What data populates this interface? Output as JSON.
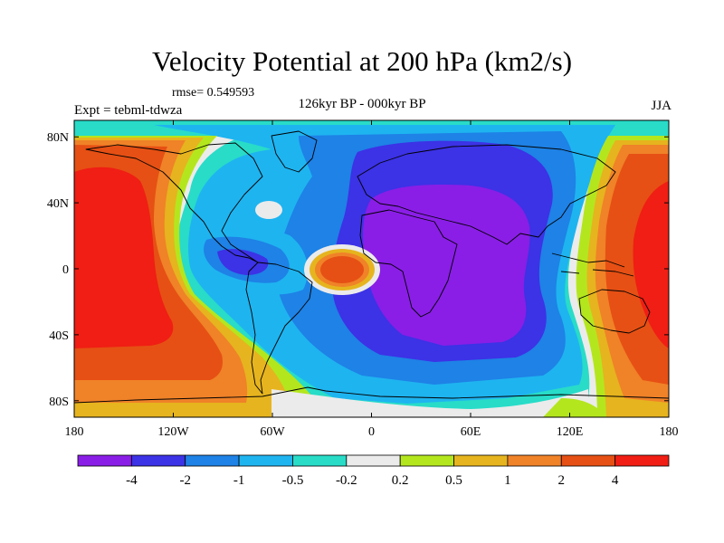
{
  "title": "Velocity Potential at 200 hPa (km2/s)",
  "rmse_text": "rmse= 0.549593",
  "left_label": "Expt = tebml-tdwza",
  "center_label": "126kyr BP - 000kyr BP",
  "right_label": "JJA",
  "colors": {
    "c0": "#8a1ee6",
    "c1": "#3c32e6",
    "c2": "#1e82e6",
    "c3": "#1eb4f0",
    "c4": "#28dcc8",
    "c5": "#ebebeb",
    "c6": "#b4e61e",
    "c7": "#e6b41e",
    "c8": "#f08228",
    "c9": "#e65014",
    "c10": "#f01e14"
  },
  "map_data": {
    "projection": "cylindrical-equidistant",
    "lon_range": [
      -180,
      180
    ],
    "lat_range": [
      -90,
      90
    ],
    "lon_ticks": [
      "180",
      "120W",
      "60W",
      "0",
      "60E",
      "120E",
      "180"
    ],
    "lat_ticks": [
      "80N",
      "40N",
      "0",
      "40S",
      "80S"
    ],
    "colorbar_levels": [
      "-4",
      "-2",
      "-1",
      "-0.5",
      "-0.2",
      "0.2",
      "0.5",
      "1",
      "2",
      "4"
    ],
    "colorbar_colors": [
      "c0",
      "c1",
      "c2",
      "c3",
      "c4",
      "c5",
      "c6",
      "c7",
      "c8",
      "c9",
      "c10"
    ]
  }
}
